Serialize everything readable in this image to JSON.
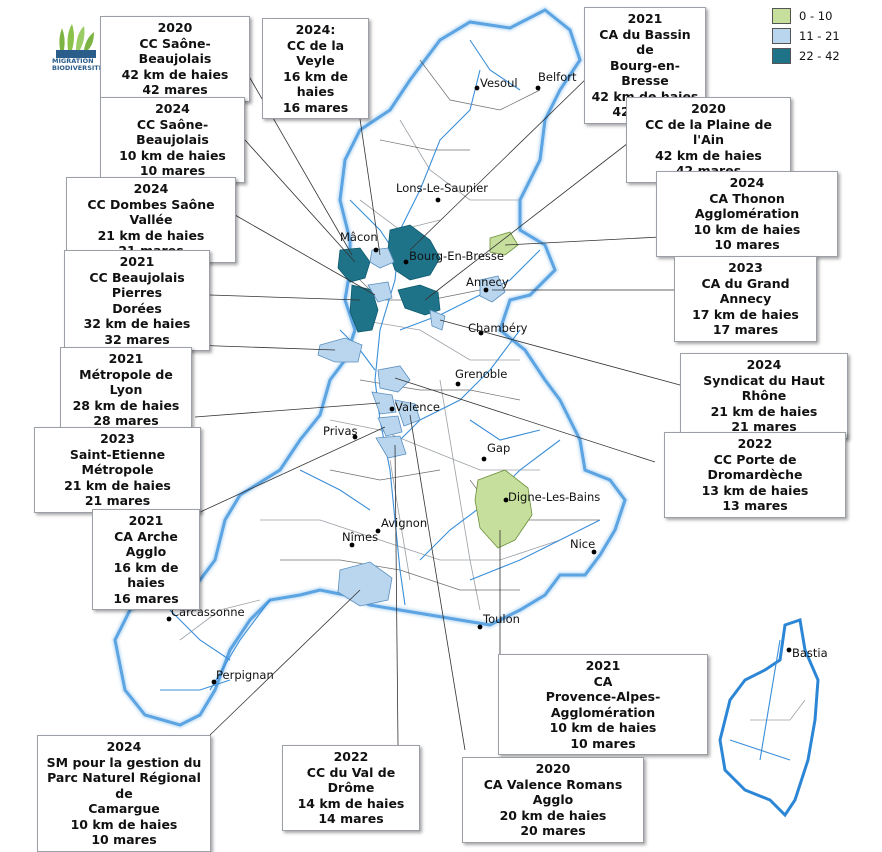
{
  "logo": {
    "line1": "MIGRATION",
    "line2": "BIODIVERSITÉ"
  },
  "legend": {
    "items": [
      {
        "label": "0 - 10",
        "color": "#c7df9d"
      },
      {
        "label": "11 - 21",
        "color": "#b9d6ee"
      },
      {
        "label": "22 - 42",
        "color": "#1f7388"
      }
    ]
  },
  "cities": {
    "vesoul": "Vesoul",
    "belfort": "Belfort",
    "lons": "Lons-Le-Saunier",
    "macon": "Mâcon",
    "bourg": "Bourg-En-Bresse",
    "annecy": "Annecy",
    "chambery": "Chambéry",
    "grenoble": "Grenoble",
    "valence": "Valence",
    "privas": "Privas",
    "gap": "Gap",
    "digne": "Digne-Les-Bains",
    "avignon": "Avignon",
    "nimes": "Nîmes",
    "nice": "Nice",
    "carcassonne": "Carcassonne",
    "toulon": "Toulon",
    "perpignan": "Perpignan",
    "bastia": "Bastia"
  },
  "callouts": {
    "saone2020": [
      "2020",
      "CC Saône-Beaujolais",
      "42 km de haies",
      "42 mares"
    ],
    "saone2024": [
      "2024",
      "CC Saône-Beaujolais",
      "10 km de haies",
      "10 mares"
    ],
    "dombes": [
      "2024",
      "CC Dombes Saône Vallée",
      "21 km de haies",
      "21 mares"
    ],
    "beaujolais": [
      "2021",
      "CC Beaujolais Pierres",
      "Dorées",
      "32 km de haies",
      "32 mares"
    ],
    "lyon": [
      "2021",
      "Métropole de Lyon",
      "28 km de haies",
      "28 mares"
    ],
    "stetienne": [
      "2023",
      "Saint-Etienne Métropole",
      "21 km de haies",
      "21 mares"
    ],
    "arche": [
      "2021",
      "CA Arche Agglo",
      "16 km de haies",
      "16 mares"
    ],
    "camargue": [
      "2024",
      "SM pour la gestion du",
      "Parc Naturel Régional de",
      "Camargue",
      "10 km de haies",
      "10 mares"
    ],
    "veyle": [
      "2024:",
      "CC de la Veyle",
      "16 km de haies",
      "16 mares"
    ],
    "bourgbresse": [
      "2021",
      "CA du Bassin de",
      "Bourg-en-Bresse",
      "42 km de haies",
      "42 mares"
    ],
    "plaineain": [
      "2020",
      "CC de la Plaine de l'Ain",
      "42 km de haies",
      "42 mares"
    ],
    "thonon": [
      "2024",
      "CA Thonon Agglomération",
      "10 km de haies",
      "10 mares"
    ],
    "annecy": [
      "2023",
      "CA du Grand Annecy",
      "17 km de haies",
      "17 mares"
    ],
    "hautrhone": [
      "2024",
      "Syndicat du Haut Rhône",
      "21 km de haies",
      "21 mares"
    ],
    "dromardeche": [
      "2022",
      "CC Porte de Dromardèche",
      "13 km de haies",
      "13 mares"
    ],
    "provence": [
      "2021",
      "CA",
      "Provence-Alpes-Agglomération",
      "10 km de haies",
      "10 mares"
    ],
    "valdrome": [
      "2022",
      "CC du Val de Drôme",
      "14 km de haies",
      "14 mares"
    ],
    "valence": [
      "2020",
      "CA Valence Romans Agglo",
      "20 km de haies",
      "20 mares"
    ]
  }
}
